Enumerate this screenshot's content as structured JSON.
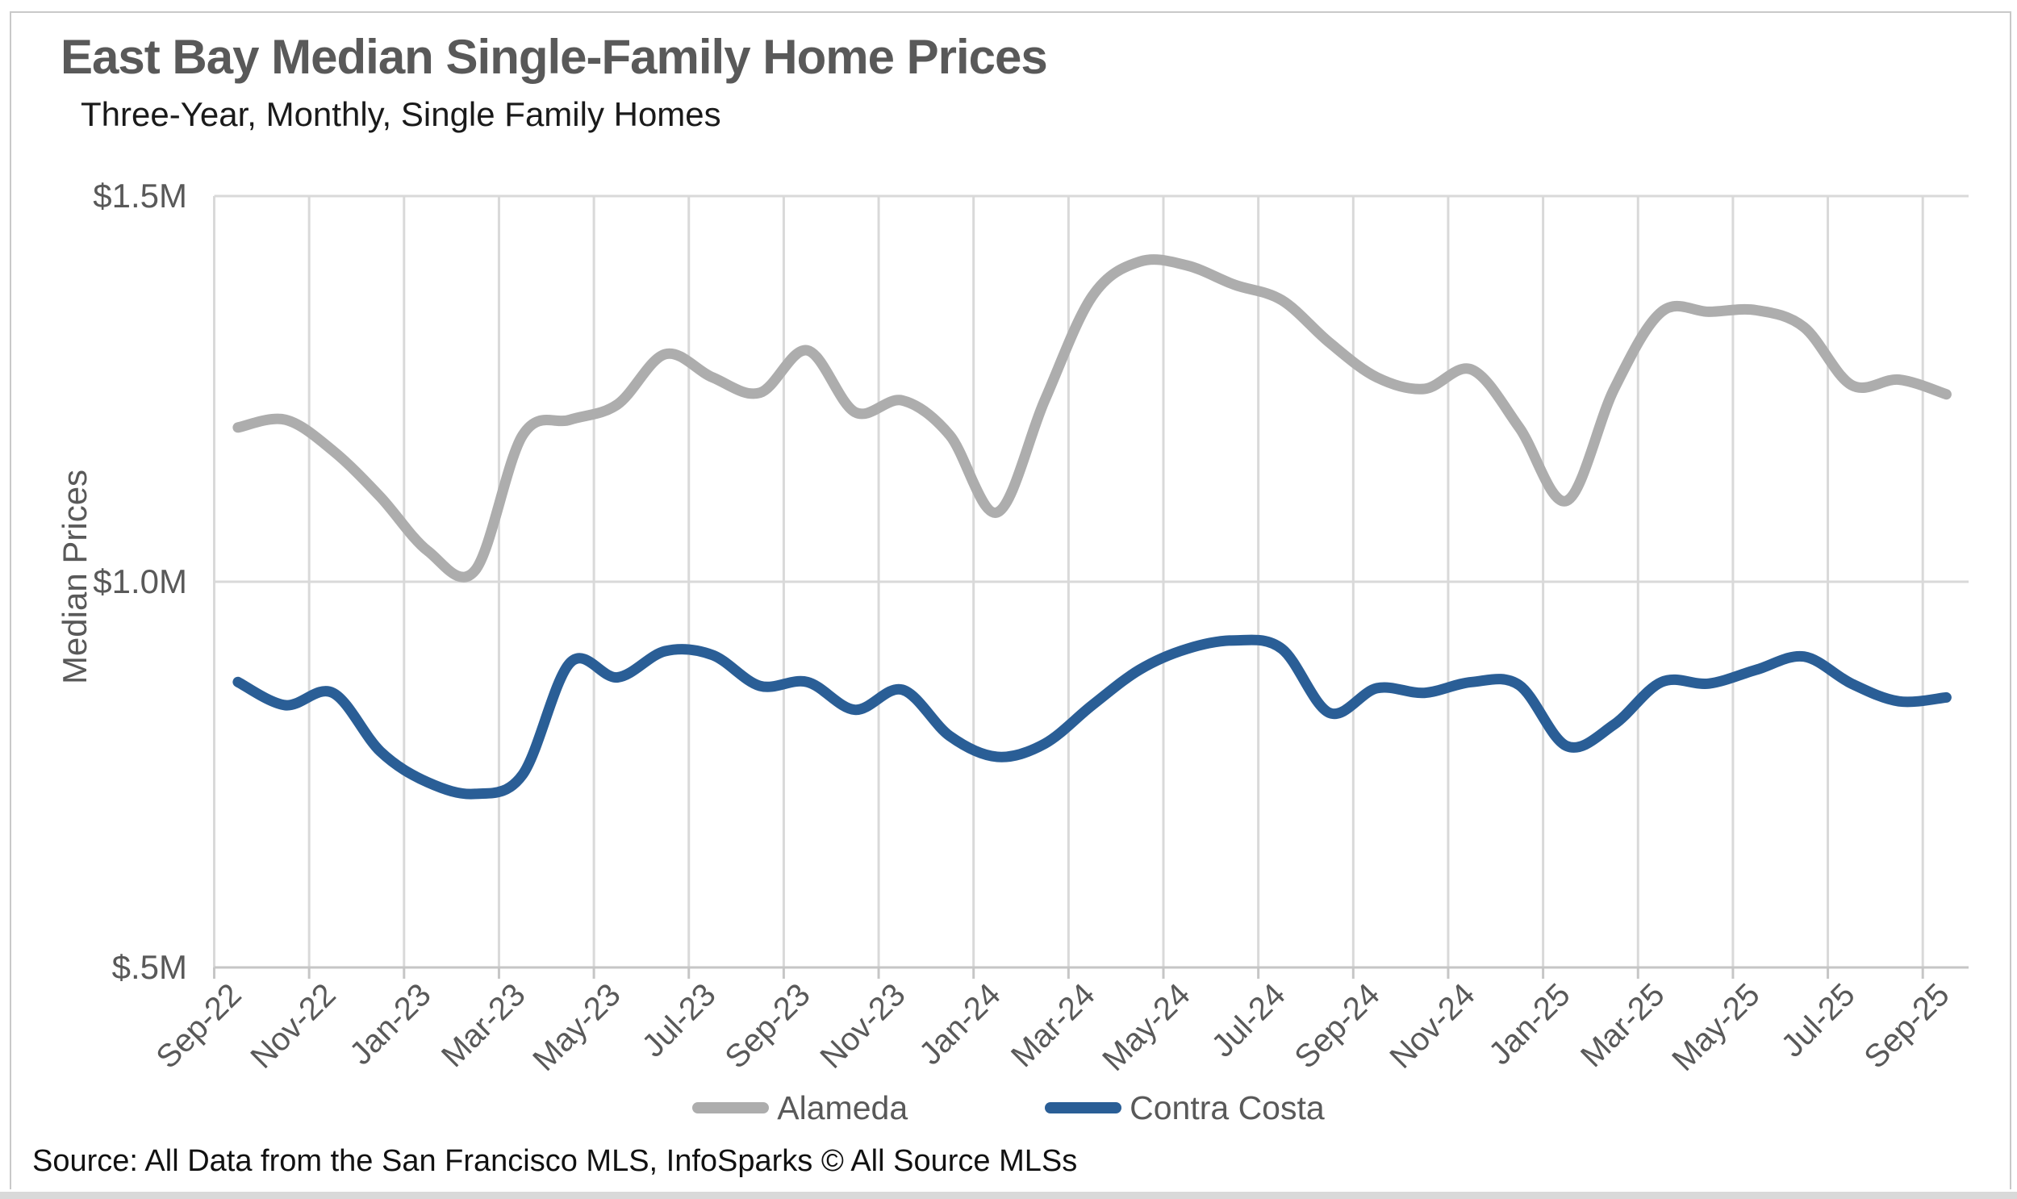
{
  "page": {
    "background": "#FFFFFF",
    "frame_border_color": "#C9C9C9",
    "bottom_bar_color": "#D9D9D9"
  },
  "styles": {
    "title_color": "#595959",
    "subtitle_color": "#1A1A1A",
    "axis_label_color": "#595959",
    "gridline_color": "#D9D9D9",
    "axis_line_color": "#C6C6C6",
    "source_color": "#111111"
  },
  "chart_data": {
    "type": "line",
    "title": "East Bay Median Single-Family Home Prices",
    "subtitle": "Three-Year, Monthly, Single Family Homes",
    "ylabel": "Median Prices",
    "xlabel": "",
    "source": "Source: All Data from the San Francisco MLS, InfoSparks © All Source MLSs",
    "units": "millions of USD",
    "ylim": [
      0.5,
      1.5
    ],
    "y_ticks": [
      {
        "label": "$1.5M",
        "value": 1.5
      },
      {
        "label": "$1.0M",
        "value": 1.0
      },
      {
        "label": "$.5M",
        "value": 0.5
      }
    ],
    "x_tick_every": 2,
    "grid": true,
    "line_smoothing": true,
    "legend_position": "bottom",
    "categories": [
      "Sep-22",
      "Oct-22",
      "Nov-22",
      "Dec-22",
      "Jan-23",
      "Feb-23",
      "Mar-23",
      "Apr-23",
      "May-23",
      "Jun-23",
      "Jul-23",
      "Aug-23",
      "Sep-23",
      "Oct-23",
      "Nov-23",
      "Dec-23",
      "Jan-24",
      "Feb-24",
      "Mar-24",
      "Apr-24",
      "May-24",
      "Jun-24",
      "Jul-24",
      "Aug-24",
      "Sep-24",
      "Oct-24",
      "Nov-24",
      "Dec-24",
      "Jan-25",
      "Feb-25",
      "Mar-25",
      "Apr-25",
      "May-25",
      "Jun-25",
      "Jul-25",
      "Aug-25",
      "Sep-25"
    ],
    "series": [
      {
        "name": "Alameda",
        "color": "#ADADAD",
        "values": [
          1.2,
          1.21,
          1.17,
          1.11,
          1.04,
          1.015,
          1.19,
          1.21,
          1.23,
          1.295,
          1.265,
          1.245,
          1.3,
          1.22,
          1.235,
          1.19,
          1.09,
          1.235,
          1.37,
          1.415,
          1.41,
          1.385,
          1.365,
          1.31,
          1.265,
          1.25,
          1.275,
          1.2,
          1.105,
          1.25,
          1.35,
          1.35,
          1.352,
          1.33,
          1.255,
          1.262,
          1.243
        ]
      },
      {
        "name": "Contra Costa",
        "color": "#2A5E96",
        "values": [
          0.87,
          0.84,
          0.856,
          0.78,
          0.74,
          0.725,
          0.75,
          0.895,
          0.876,
          0.91,
          0.905,
          0.865,
          0.87,
          0.834,
          0.86,
          0.8,
          0.773,
          0.79,
          0.84,
          0.886,
          0.913,
          0.924,
          0.913,
          0.83,
          0.862,
          0.856,
          0.87,
          0.866,
          0.787,
          0.815,
          0.87,
          0.868,
          0.886,
          0.903,
          0.868,
          0.845,
          0.85
        ]
      }
    ]
  }
}
